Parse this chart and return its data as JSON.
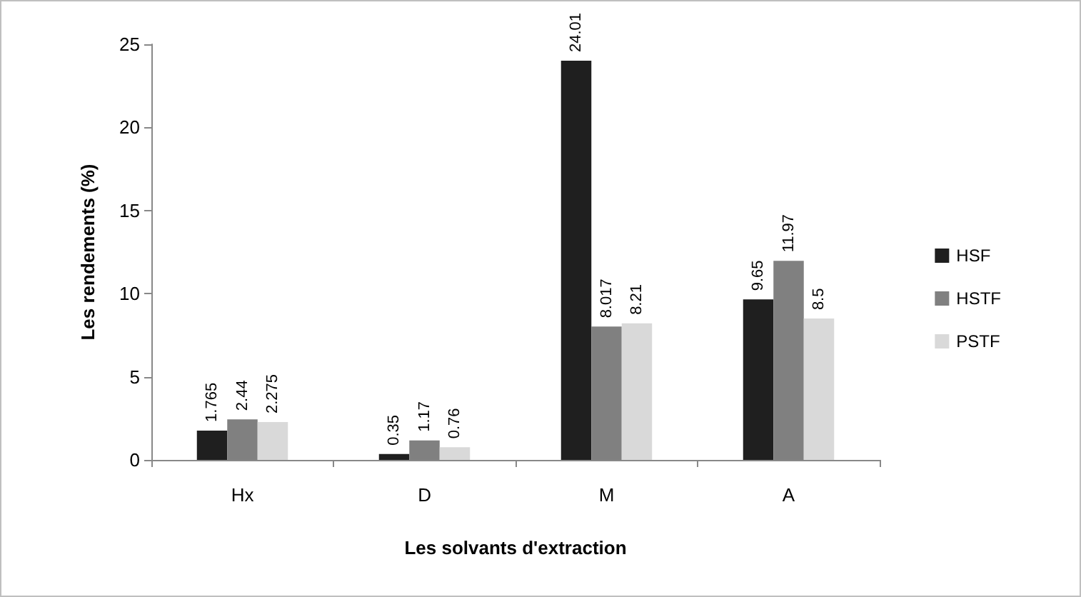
{
  "chart_data": {
    "type": "bar",
    "xlabel": "Les solvants d'extraction",
    "ylabel": "Les rendements (%)",
    "categories": [
      "Hx",
      "D",
      "M",
      "A"
    ],
    "series": [
      {
        "name": "HSF",
        "color": "#1f1f1f",
        "values": [
          1.765,
          0.35,
          24.01,
          9.65
        ]
      },
      {
        "name": "HSTF",
        "color": "#808080",
        "values": [
          2.44,
          1.17,
          8.017,
          11.97
        ]
      },
      {
        "name": "PSTF",
        "color": "#d9d9d9",
        "values": [
          2.275,
          0.76,
          8.21,
          8.5
        ]
      }
    ],
    "ylim": [
      0,
      25
    ],
    "yticks": [
      0,
      5,
      10,
      15,
      20,
      25
    ],
    "grid": false,
    "legend": "right",
    "data_labels": true
  }
}
